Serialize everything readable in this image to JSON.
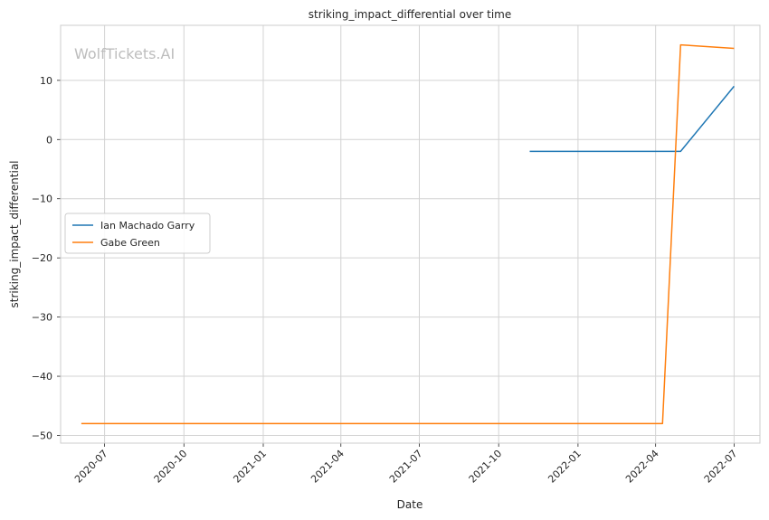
{
  "chart_data": {
    "type": "line",
    "title": "striking_impact_differential over time",
    "xlabel": "Date",
    "ylabel": "striking_impact_differential",
    "watermark": "WolfTickets.AI",
    "x_ticks": [
      "2020-07",
      "2020-10",
      "2021-01",
      "2021-04",
      "2021-07",
      "2021-10",
      "2022-01",
      "2022-04",
      "2022-07"
    ],
    "y_ticks": [
      10,
      0,
      -10,
      -20,
      -30,
      -40,
      -50
    ],
    "y_tick_labels": [
      "10",
      "0",
      "−10",
      "−20",
      "−30",
      "−40",
      "−50"
    ],
    "xlim": [
      "2020-05-11",
      "2022-07-31"
    ],
    "ylim": [
      -51.3,
      19.3
    ],
    "grid": true,
    "legend_position": "center-left",
    "series": [
      {
        "name": "Ian Machado Garry",
        "color": "#1f77b4",
        "points": [
          {
            "date": "2021-11-06",
            "value": -2
          },
          {
            "date": "2022-04-30",
            "value": -2
          },
          {
            "date": "2022-07-01",
            "value": 9
          }
        ]
      },
      {
        "name": "Gabe Green",
        "color": "#ff7f0e",
        "points": [
          {
            "date": "2020-06-04",
            "value": -48
          },
          {
            "date": "2022-04-09",
            "value": -48
          },
          {
            "date": "2022-04-30",
            "value": 16
          },
          {
            "date": "2022-07-01",
            "value": 15.4
          }
        ]
      }
    ]
  }
}
